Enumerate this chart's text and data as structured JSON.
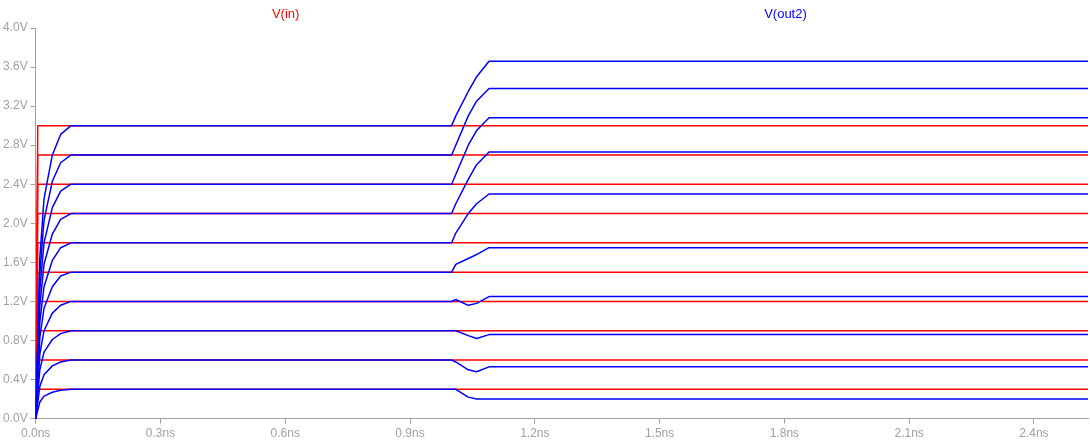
{
  "chart_data": {
    "type": "line",
    "marker": "none",
    "legend": "top",
    "grid": false,
    "xlim": [
      0,
      2.53
    ],
    "xticks": [
      {
        "value": 0,
        "label": "0.0ns"
      },
      {
        "value": 0.3,
        "label": "0.3ns"
      },
      {
        "value": 0.6,
        "label": "0.6ns"
      },
      {
        "value": 0.9,
        "label": "0.9ns"
      },
      {
        "value": 1.2,
        "label": "1.2ns"
      },
      {
        "value": 1.5,
        "label": "1.5ns"
      },
      {
        "value": 1.8,
        "label": "1.8ns"
      },
      {
        "value": 2.1,
        "label": "2.1ns"
      },
      {
        "value": 2.4,
        "label": "2.4ns"
      }
    ],
    "ylim": [
      0,
      4
    ],
    "yticks": [
      {
        "value": 0,
        "label": "0.0V"
      },
      {
        "value": 0.4,
        "label": "0.4V"
      },
      {
        "value": 0.8,
        "label": "0.8V"
      },
      {
        "value": 1.2,
        "label": "1.2V"
      },
      {
        "value": 1.6,
        "label": "1.6V"
      },
      {
        "value": 2.0,
        "label": "2.0V"
      },
      {
        "value": 2.4,
        "label": "2.4V"
      },
      {
        "value": 2.8,
        "label": "2.8V"
      },
      {
        "value": 3.2,
        "label": "3.2V"
      },
      {
        "value": 3.6,
        "label": "3.6V"
      },
      {
        "value": 4.0,
        "label": "4.0V"
      }
    ],
    "series": [
      {
        "name": "V(in)",
        "color": "#ff0000",
        "x": [
          0,
          0.005,
          2.53
        ],
        "values": [
          0,
          3.0,
          3.0
        ]
      },
      {
        "color": "#ff0000",
        "x": [
          0,
          0.005,
          2.53
        ],
        "values": [
          0,
          2.7,
          2.7
        ]
      },
      {
        "color": "#ff0000",
        "x": [
          0,
          0.005,
          2.53
        ],
        "values": [
          0,
          2.4,
          2.4
        ]
      },
      {
        "color": "#ff0000",
        "x": [
          0,
          0.005,
          2.53
        ],
        "values": [
          0,
          2.1,
          2.1
        ]
      },
      {
        "color": "#ff0000",
        "x": [
          0,
          0.005,
          2.53
        ],
        "values": [
          0,
          1.8,
          1.8
        ]
      },
      {
        "color": "#ff0000",
        "x": [
          0,
          0.005,
          2.53
        ],
        "values": [
          0,
          1.5,
          1.5
        ]
      },
      {
        "color": "#ff0000",
        "x": [
          0,
          0.005,
          2.53
        ],
        "values": [
          0,
          1.2,
          1.2
        ]
      },
      {
        "color": "#ff0000",
        "x": [
          0,
          0.005,
          2.53
        ],
        "values": [
          0,
          0.9,
          0.9
        ]
      },
      {
        "color": "#ff0000",
        "x": [
          0,
          0.005,
          2.53
        ],
        "values": [
          0,
          0.6,
          0.6
        ]
      },
      {
        "color": "#ff0000",
        "x": [
          0,
          0.005,
          2.53
        ],
        "values": [
          0,
          0.3,
          0.3
        ]
      },
      {
        "name": "V(out2)",
        "color": "#0000ff",
        "x": [
          0,
          0.01,
          0.02,
          0.04,
          0.06,
          0.085,
          1.0,
          1.01,
          1.04,
          1.06,
          1.09,
          2.53
        ],
        "values": [
          0,
          1.65,
          2.25,
          2.7,
          2.91,
          3.0,
          3.0,
          3.1,
          3.35,
          3.5,
          3.66,
          3.66
        ]
      },
      {
        "color": "#0000ff",
        "x": [
          0,
          0.01,
          0.02,
          0.04,
          0.06,
          0.085,
          1.0,
          1.01,
          1.04,
          1.06,
          1.09,
          2.53
        ],
        "values": [
          0,
          1.49,
          2.03,
          2.43,
          2.62,
          2.7,
          2.7,
          2.8,
          3.1,
          3.25,
          3.38,
          3.38
        ]
      },
      {
        "color": "#0000ff",
        "x": [
          0,
          0.01,
          0.02,
          0.04,
          0.06,
          0.085,
          1.0,
          1.01,
          1.04,
          1.06,
          1.09,
          2.53
        ],
        "values": [
          0,
          1.32,
          1.8,
          2.16,
          2.33,
          2.4,
          2.4,
          2.5,
          2.8,
          2.95,
          3.08,
          3.08
        ]
      },
      {
        "color": "#0000ff",
        "x": [
          0,
          0.01,
          0.02,
          0.04,
          0.06,
          0.085,
          1.0,
          1.01,
          1.04,
          1.06,
          1.09,
          2.53
        ],
        "values": [
          0,
          1.16,
          1.58,
          1.89,
          2.04,
          2.1,
          2.1,
          2.2,
          2.45,
          2.6,
          2.73,
          2.73
        ]
      },
      {
        "color": "#0000ff",
        "x": [
          0,
          0.01,
          0.02,
          0.04,
          0.06,
          0.085,
          1.0,
          1.01,
          1.04,
          1.06,
          1.09,
          2.53
        ],
        "values": [
          0,
          0.99,
          1.35,
          1.62,
          1.75,
          1.8,
          1.8,
          1.9,
          2.1,
          2.2,
          2.3,
          2.3
        ]
      },
      {
        "color": "#0000ff",
        "x": [
          0,
          0.01,
          0.02,
          0.04,
          0.06,
          0.085,
          1.0,
          1.01,
          1.04,
          1.06,
          1.09,
          2.53
        ],
        "values": [
          0,
          0.83,
          1.13,
          1.35,
          1.46,
          1.5,
          1.5,
          1.58,
          1.64,
          1.68,
          1.75,
          1.75
        ]
      },
      {
        "color": "#0000ff",
        "x": [
          0,
          0.01,
          0.02,
          0.04,
          0.06,
          0.085,
          1.0,
          1.01,
          1.04,
          1.06,
          1.09,
          2.53
        ],
        "values": [
          0,
          0.66,
          0.9,
          1.08,
          1.16,
          1.2,
          1.2,
          1.22,
          1.16,
          1.18,
          1.25,
          1.25
        ]
      },
      {
        "color": "#0000ff",
        "x": [
          0,
          0.01,
          0.02,
          0.04,
          0.06,
          0.085,
          1.0,
          1.01,
          1.04,
          1.06,
          1.09,
          2.53
        ],
        "values": [
          0,
          0.5,
          0.68,
          0.81,
          0.87,
          0.9,
          0.9,
          0.9,
          0.85,
          0.82,
          0.86,
          0.86
        ]
      },
      {
        "color": "#0000ff",
        "x": [
          0,
          0.01,
          0.02,
          0.04,
          0.06,
          0.085,
          1.0,
          1.01,
          1.04,
          1.06,
          1.09,
          2.53
        ],
        "values": [
          0,
          0.33,
          0.45,
          0.54,
          0.58,
          0.6,
          0.6,
          0.58,
          0.5,
          0.48,
          0.53,
          0.53
        ]
      },
      {
        "color": "#0000ff",
        "x": [
          0,
          0.01,
          0.02,
          0.04,
          0.06,
          0.085,
          1.0,
          1.01,
          1.04,
          1.06,
          1.09,
          2.53
        ],
        "values": [
          0,
          0.17,
          0.23,
          0.27,
          0.29,
          0.3,
          0.3,
          0.3,
          0.22,
          0.2,
          0.2,
          0.2
        ]
      }
    ]
  }
}
